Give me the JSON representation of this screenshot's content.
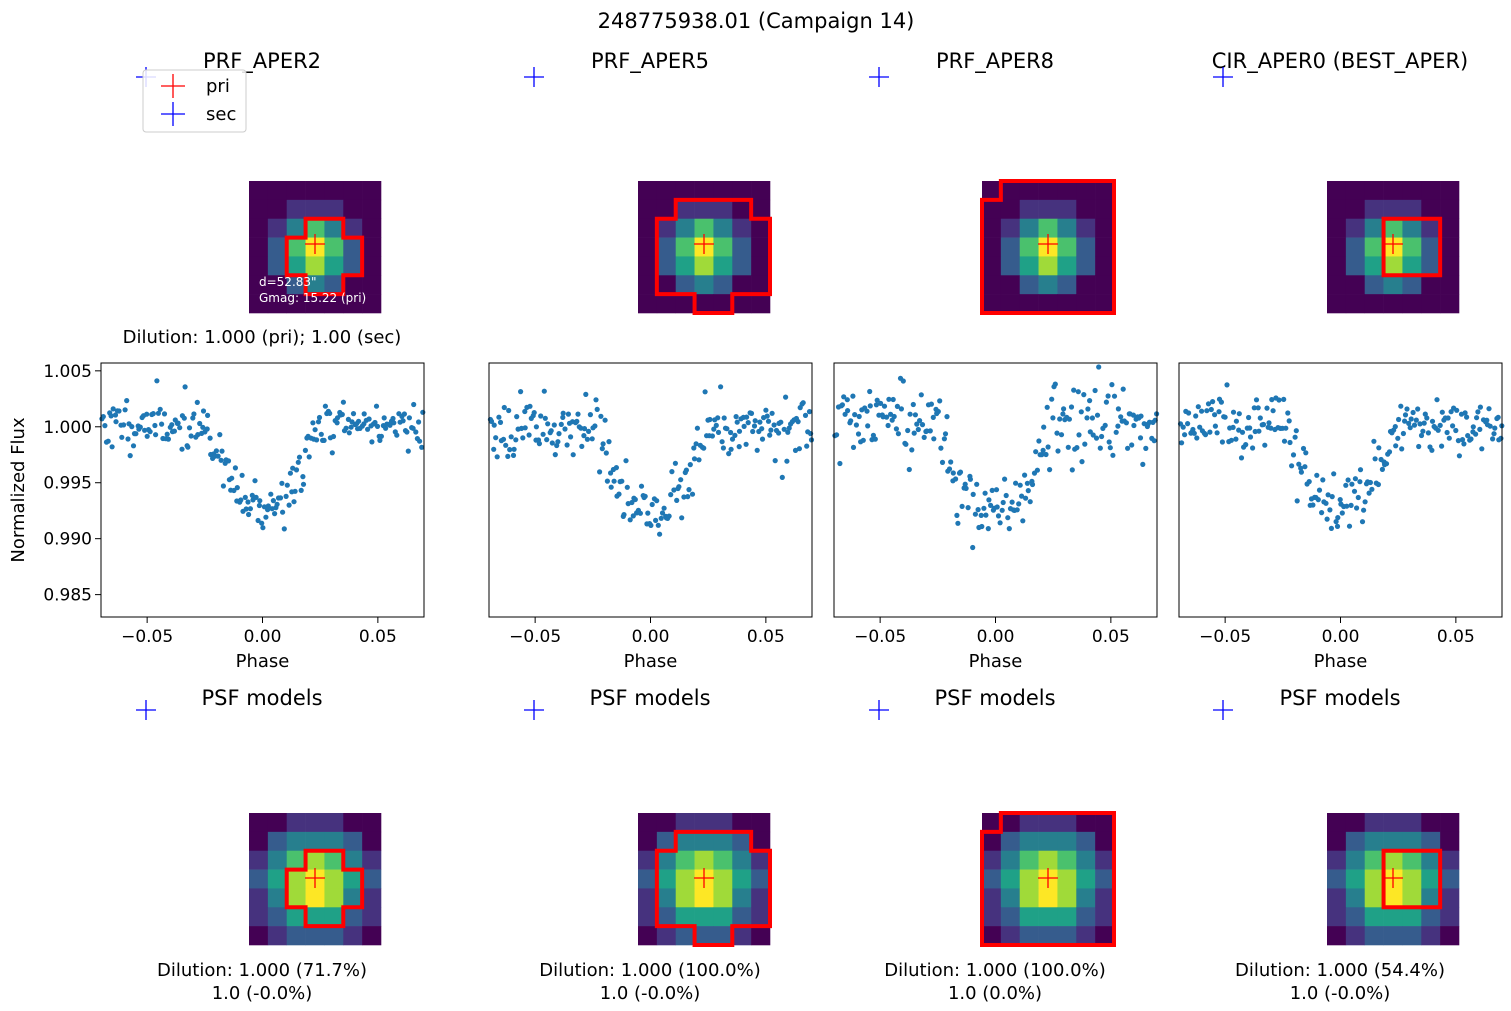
{
  "figure": {
    "title": "248775938.01 (Campaign 14)",
    "legend": {
      "placement": "top-left",
      "entries": [
        {
          "label": "pri",
          "color": "#ff0000"
        },
        {
          "label": "sec",
          "color": "#0000ff"
        }
      ]
    },
    "colormap": [
      "#440154",
      "#46327e",
      "#365c8d",
      "#277f8e",
      "#1fa187",
      "#4ac16d",
      "#a0da39",
      "#fde725"
    ],
    "aperture_color": "#ff0000",
    "marker_pri_color": "#ff0000",
    "marker_sec_color": "#0000ff",
    "point_color": "#1f77b4",
    "ylabel": "Normalized Flux",
    "xlabel": "Phase"
  },
  "panels": [
    {
      "id": "prf-aper2",
      "top_title": "PRF_APER2",
      "top_annotation": [
        "d=52.83\"",
        "Gmag: 15.22 (pri)"
      ],
      "top_dilution": "Dilution: 1.000 (pri); 1.00 (sec)",
      "psf_title": "PSF models",
      "psf_dilution": [
        "Dilution: 1.000 (71.7%)",
        "1.0 (-0.0%)"
      ],
      "aperture_pixels": [
        [
          3,
          2
        ],
        [
          4,
          2
        ],
        [
          2,
          3
        ],
        [
          3,
          3
        ],
        [
          4,
          3
        ],
        [
          5,
          3
        ],
        [
          2,
          4
        ],
        [
          3,
          4
        ],
        [
          4,
          4
        ],
        [
          5,
          4
        ],
        [
          3,
          5
        ],
        [
          4,
          5
        ]
      ],
      "psf_aperture_pixels": [
        [
          3,
          2
        ],
        [
          4,
          2
        ],
        [
          2,
          3
        ],
        [
          3,
          3
        ],
        [
          4,
          3
        ],
        [
          5,
          3
        ],
        [
          2,
          4
        ],
        [
          3,
          4
        ],
        [
          4,
          4
        ],
        [
          5,
          4
        ],
        [
          3,
          5
        ],
        [
          4,
          5
        ]
      ],
      "depth": 0.0075,
      "width": 0.024,
      "noise": 0.0011,
      "seed": 11
    },
    {
      "id": "prf-aper5",
      "top_title": "PRF_APER5",
      "top_annotation": [],
      "top_dilution": "",
      "psf_title": "PSF models",
      "psf_dilution": [
        "Dilution: 1.000 (100.0%)",
        "1.0 (-0.0%)"
      ],
      "aperture_pixels": [
        [
          2,
          1
        ],
        [
          3,
          1
        ],
        [
          4,
          1
        ],
        [
          5,
          1
        ],
        [
          1,
          2
        ],
        [
          2,
          2
        ],
        [
          3,
          2
        ],
        [
          4,
          2
        ],
        [
          5,
          2
        ],
        [
          6,
          2
        ],
        [
          1,
          3
        ],
        [
          2,
          3
        ],
        [
          3,
          3
        ],
        [
          4,
          3
        ],
        [
          5,
          3
        ],
        [
          6,
          3
        ],
        [
          1,
          4
        ],
        [
          2,
          4
        ],
        [
          3,
          4
        ],
        [
          4,
          4
        ],
        [
          5,
          4
        ],
        [
          6,
          4
        ],
        [
          1,
          5
        ],
        [
          2,
          5
        ],
        [
          3,
          5
        ],
        [
          4,
          5
        ],
        [
          5,
          5
        ],
        [
          6,
          5
        ],
        [
          3,
          6
        ],
        [
          4,
          6
        ]
      ],
      "psf_aperture_pixels": [
        [
          2,
          1
        ],
        [
          3,
          1
        ],
        [
          4,
          1
        ],
        [
          5,
          1
        ],
        [
          1,
          2
        ],
        [
          2,
          2
        ],
        [
          3,
          2
        ],
        [
          4,
          2
        ],
        [
          5,
          2
        ],
        [
          6,
          2
        ],
        [
          1,
          3
        ],
        [
          2,
          3
        ],
        [
          3,
          3
        ],
        [
          4,
          3
        ],
        [
          5,
          3
        ],
        [
          6,
          3
        ],
        [
          1,
          4
        ],
        [
          2,
          4
        ],
        [
          3,
          4
        ],
        [
          4,
          4
        ],
        [
          5,
          4
        ],
        [
          6,
          4
        ],
        [
          1,
          5
        ],
        [
          2,
          5
        ],
        [
          3,
          5
        ],
        [
          4,
          5
        ],
        [
          5,
          5
        ],
        [
          6,
          5
        ],
        [
          3,
          6
        ],
        [
          4,
          6
        ]
      ],
      "depth": 0.0078,
      "width": 0.024,
      "noise": 0.0013,
      "seed": 23
    },
    {
      "id": "prf-aper8",
      "top_title": "PRF_APER8",
      "top_annotation": [],
      "top_dilution": "",
      "psf_title": "PSF models",
      "psf_dilution": [
        "Dilution: 1.000 (100.0%)",
        "1.0 (0.0%)"
      ],
      "aperture_pixels": [
        [
          1,
          0
        ],
        [
          2,
          0
        ],
        [
          3,
          0
        ],
        [
          4,
          0
        ],
        [
          5,
          0
        ],
        [
          6,
          0
        ],
        [
          0,
          1
        ],
        [
          1,
          1
        ],
        [
          2,
          1
        ],
        [
          3,
          1
        ],
        [
          4,
          1
        ],
        [
          5,
          1
        ],
        [
          6,
          1
        ],
        [
          0,
          2
        ],
        [
          1,
          2
        ],
        [
          2,
          2
        ],
        [
          3,
          2
        ],
        [
          4,
          2
        ],
        [
          5,
          2
        ],
        [
          6,
          2
        ],
        [
          0,
          3
        ],
        [
          1,
          3
        ],
        [
          2,
          3
        ],
        [
          3,
          3
        ],
        [
          4,
          3
        ],
        [
          5,
          3
        ],
        [
          6,
          3
        ],
        [
          0,
          4
        ],
        [
          1,
          4
        ],
        [
          2,
          4
        ],
        [
          3,
          4
        ],
        [
          4,
          4
        ],
        [
          5,
          4
        ],
        [
          6,
          4
        ],
        [
          0,
          5
        ],
        [
          1,
          5
        ],
        [
          2,
          5
        ],
        [
          3,
          5
        ],
        [
          4,
          5
        ],
        [
          5,
          5
        ],
        [
          6,
          5
        ],
        [
          0,
          6
        ],
        [
          1,
          6
        ],
        [
          2,
          6
        ],
        [
          3,
          6
        ],
        [
          4,
          6
        ],
        [
          5,
          6
        ],
        [
          6,
          6
        ]
      ],
      "psf_aperture_pixels": [
        [
          1,
          0
        ],
        [
          2,
          0
        ],
        [
          3,
          0
        ],
        [
          4,
          0
        ],
        [
          5,
          0
        ],
        [
          6,
          0
        ],
        [
          0,
          1
        ],
        [
          1,
          1
        ],
        [
          2,
          1
        ],
        [
          3,
          1
        ],
        [
          4,
          1
        ],
        [
          5,
          1
        ],
        [
          6,
          1
        ],
        [
          0,
          2
        ],
        [
          1,
          2
        ],
        [
          2,
          2
        ],
        [
          3,
          2
        ],
        [
          4,
          2
        ],
        [
          5,
          2
        ],
        [
          6,
          2
        ],
        [
          0,
          3
        ],
        [
          1,
          3
        ],
        [
          2,
          3
        ],
        [
          3,
          3
        ],
        [
          4,
          3
        ],
        [
          5,
          3
        ],
        [
          6,
          3
        ],
        [
          0,
          4
        ],
        [
          1,
          4
        ],
        [
          2,
          4
        ],
        [
          3,
          4
        ],
        [
          4,
          4
        ],
        [
          5,
          4
        ],
        [
          6,
          4
        ],
        [
          0,
          5
        ],
        [
          1,
          5
        ],
        [
          2,
          5
        ],
        [
          3,
          5
        ],
        [
          4,
          5
        ],
        [
          5,
          5
        ],
        [
          6,
          5
        ],
        [
          0,
          6
        ],
        [
          1,
          6
        ],
        [
          2,
          6
        ],
        [
          3,
          6
        ],
        [
          4,
          6
        ],
        [
          5,
          6
        ],
        [
          6,
          6
        ]
      ],
      "depth": 0.008,
      "width": 0.024,
      "noise": 0.0017,
      "seed": 37
    },
    {
      "id": "cir-aper0",
      "top_title": "CIR_APER0 (BEST_APER)",
      "top_annotation": [],
      "top_dilution": "",
      "psf_title": "PSF models",
      "psf_dilution": [
        "Dilution: 1.000 (54.4%)",
        "1.0 (-0.0%)"
      ],
      "aperture_pixels": [
        [
          3,
          2
        ],
        [
          4,
          2
        ],
        [
          5,
          2
        ],
        [
          3,
          3
        ],
        [
          4,
          3
        ],
        [
          5,
          3
        ],
        [
          3,
          4
        ],
        [
          4,
          4
        ],
        [
          5,
          4
        ]
      ],
      "psf_aperture_pixels": [
        [
          3,
          2
        ],
        [
          4,
          2
        ],
        [
          5,
          2
        ],
        [
          3,
          3
        ],
        [
          4,
          3
        ],
        [
          5,
          3
        ],
        [
          3,
          4
        ],
        [
          4,
          4
        ],
        [
          5,
          4
        ]
      ],
      "depth": 0.0072,
      "width": 0.024,
      "noise": 0.0012,
      "seed": 51
    }
  ],
  "chart_data": {
    "type": "scatter",
    "title": "248775938.01 (Campaign 14)",
    "xlabel": "Phase",
    "ylabel": "Normalized Flux",
    "xlim": [
      -0.07,
      0.07
    ],
    "ylim": [
      0.983,
      1.0057
    ],
    "xticks": [
      -0.05,
      0.0,
      0.05
    ],
    "xtick_labels": [
      "−0.05",
      "0.00",
      "0.05"
    ],
    "yticks": [
      0.985,
      0.99,
      0.995,
      1.0,
      1.005
    ],
    "ytick_labels": [
      "0.985",
      "0.990",
      "0.995",
      "1.000",
      "1.005"
    ],
    "grid": false,
    "series": [
      {
        "name": "PRF_APER2",
        "min_flux": 0.9911,
        "max_flux": 1.0047
      },
      {
        "name": "PRF_APER5",
        "min_flux": 0.9899,
        "max_flux": 1.0045
      },
      {
        "name": "PRF_APER8",
        "min_flux": 0.9897,
        "max_flux": 1.0051
      },
      {
        "name": "CIR_APER0 (BEST_APER)",
        "min_flux": 0.9903,
        "max_flux": 1.0053
      }
    ]
  }
}
